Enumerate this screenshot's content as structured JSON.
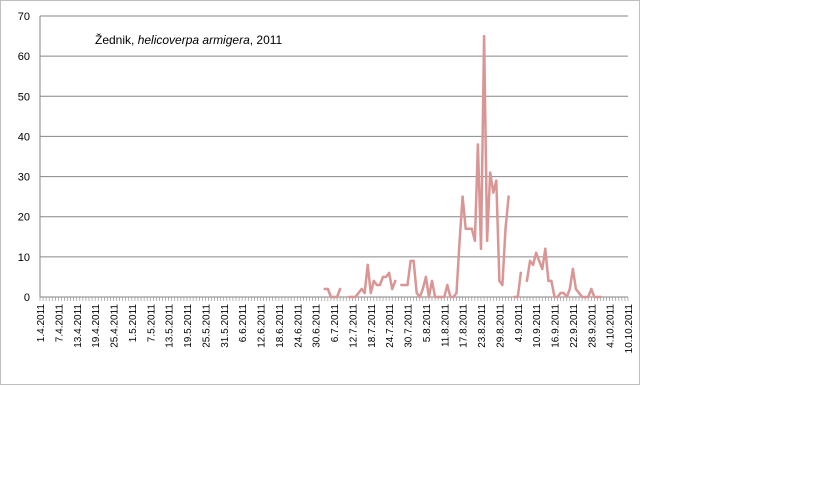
{
  "chart_data": {
    "type": "line",
    "title_parts": {
      "prefix": "Žednik, ",
      "italic": "helicoverpa armigera",
      "suffix": ", 2011"
    },
    "xlabel": "",
    "ylabel": "",
    "ylim": [
      0,
      70
    ],
    "y_ticks": [
      0,
      10,
      20,
      30,
      40,
      50,
      60,
      70
    ],
    "grid": true,
    "legend": "none",
    "x_start": "1.4.2011",
    "x_end": "10.10.2011",
    "x_tick_labels": [
      "1.4.2011",
      "7.4.2011",
      "13.4.2011",
      "19.4.2011",
      "25.4.2011",
      "1.5.2011",
      "7.5.2011",
      "13.5.2011",
      "19.5.2011",
      "25.5.2011",
      "31.5.2011",
      "6.6.2011",
      "12.6.2011",
      "18.6.2011",
      "24.6.2011",
      "30.6.2011",
      "6.7.2011",
      "12.7.2011",
      "18.7.2011",
      "24.7.2011",
      "30.7.2011",
      "5.8.2011",
      "11.8.2011",
      "17.8.2011",
      "23.8.2011",
      "29.8.2011",
      "4.9.2011",
      "10.9.2011",
      "16.9.2011",
      "22.9.2011",
      "28.9.2011",
      "4.10.2011",
      "10.10.2011"
    ],
    "series": [
      {
        "color": "#d99694",
        "segments": [
          [
            [
              "3.7.2011",
              2
            ],
            [
              "4.7.2011",
              2
            ],
            [
              "5.7.2011",
              0
            ],
            [
              "6.7.2011",
              0
            ],
            [
              "7.7.2011",
              0
            ],
            [
              "8.7.2011",
              2
            ]
          ],
          [
            [
              "11.7.2011",
              0
            ],
            [
              "12.7.2011",
              0
            ],
            [
              "13.7.2011",
              0
            ],
            [
              "14.7.2011",
              1
            ],
            [
              "15.7.2011",
              2
            ],
            [
              "16.7.2011",
              1
            ],
            [
              "17.7.2011",
              8
            ],
            [
              "18.7.2011",
              1
            ],
            [
              "19.7.2011",
              4
            ],
            [
              "20.7.2011",
              3
            ],
            [
              "21.7.2011",
              3
            ],
            [
              "22.7.2011",
              5
            ],
            [
              "23.7.2011",
              5
            ],
            [
              "24.7.2011",
              6
            ],
            [
              "25.7.2011",
              2
            ],
            [
              "26.7.2011",
              4
            ]
          ],
          [
            [
              "28.7.2011",
              3
            ],
            [
              "29.7.2011",
              3
            ],
            [
              "30.7.2011",
              3
            ],
            [
              "31.7.2011",
              9
            ],
            [
              "1.8.2011",
              9
            ],
            [
              "2.8.2011",
              1
            ],
            [
              "3.8.2011",
              0
            ],
            [
              "4.8.2011",
              2
            ],
            [
              "5.8.2011",
              5
            ],
            [
              "6.8.2011",
              0
            ],
            [
              "7.8.2011",
              4
            ],
            [
              "8.8.2011",
              0
            ],
            [
              "9.8.2011",
              0
            ],
            [
              "10.8.2011",
              0
            ],
            [
              "11.8.2011",
              0
            ],
            [
              "12.8.2011",
              3
            ],
            [
              "13.8.2011",
              0
            ],
            [
              "14.8.2011",
              0
            ],
            [
              "15.8.2011",
              1
            ],
            [
              "16.8.2011",
              14
            ],
            [
              "17.8.2011",
              25
            ],
            [
              "18.8.2011",
              17
            ],
            [
              "19.8.2011",
              17
            ],
            [
              "20.8.2011",
              17
            ],
            [
              "21.8.2011",
              14
            ],
            [
              "22.8.2011",
              38
            ],
            [
              "23.8.2011",
              12
            ],
            [
              "24.8.2011",
              65
            ],
            [
              "25.8.2011",
              14
            ],
            [
              "26.8.2011",
              31
            ],
            [
              "27.8.2011",
              26
            ],
            [
              "28.8.2011",
              29
            ],
            [
              "29.8.2011",
              4
            ],
            [
              "30.8.2011",
              3
            ],
            [
              "31.8.2011",
              17
            ],
            [
              "1.9.2011",
              25
            ]
          ],
          [
            [
              "3.9.2011",
              0
            ],
            [
              "4.9.2011",
              0
            ],
            [
              "5.9.2011",
              6
            ]
          ],
          [
            [
              "7.9.2011",
              4
            ],
            [
              "8.9.2011",
              9
            ],
            [
              "9.9.2011",
              8
            ],
            [
              "10.9.2011",
              11
            ],
            [
              "11.9.2011",
              9
            ],
            [
              "12.9.2011",
              7
            ],
            [
              "13.9.2011",
              12
            ],
            [
              "14.9.2011",
              4
            ],
            [
              "15.9.2011",
              4
            ],
            [
              "16.9.2011",
              0
            ],
            [
              "17.9.2011",
              0
            ],
            [
              "18.9.2011",
              1
            ],
            [
              "19.9.2011",
              1
            ],
            [
              "20.9.2011",
              0
            ],
            [
              "21.9.2011",
              2
            ],
            [
              "22.9.2011",
              7
            ],
            [
              "23.9.2011",
              2
            ],
            [
              "24.9.2011",
              1
            ],
            [
              "25.9.2011",
              0
            ],
            [
              "26.9.2011",
              0
            ],
            [
              "27.9.2011",
              0
            ],
            [
              "28.9.2011",
              2
            ],
            [
              "29.9.2011",
              0
            ],
            [
              "30.9.2011",
              0
            ],
            [
              "1.10.2011",
              0
            ]
          ]
        ]
      }
    ]
  }
}
